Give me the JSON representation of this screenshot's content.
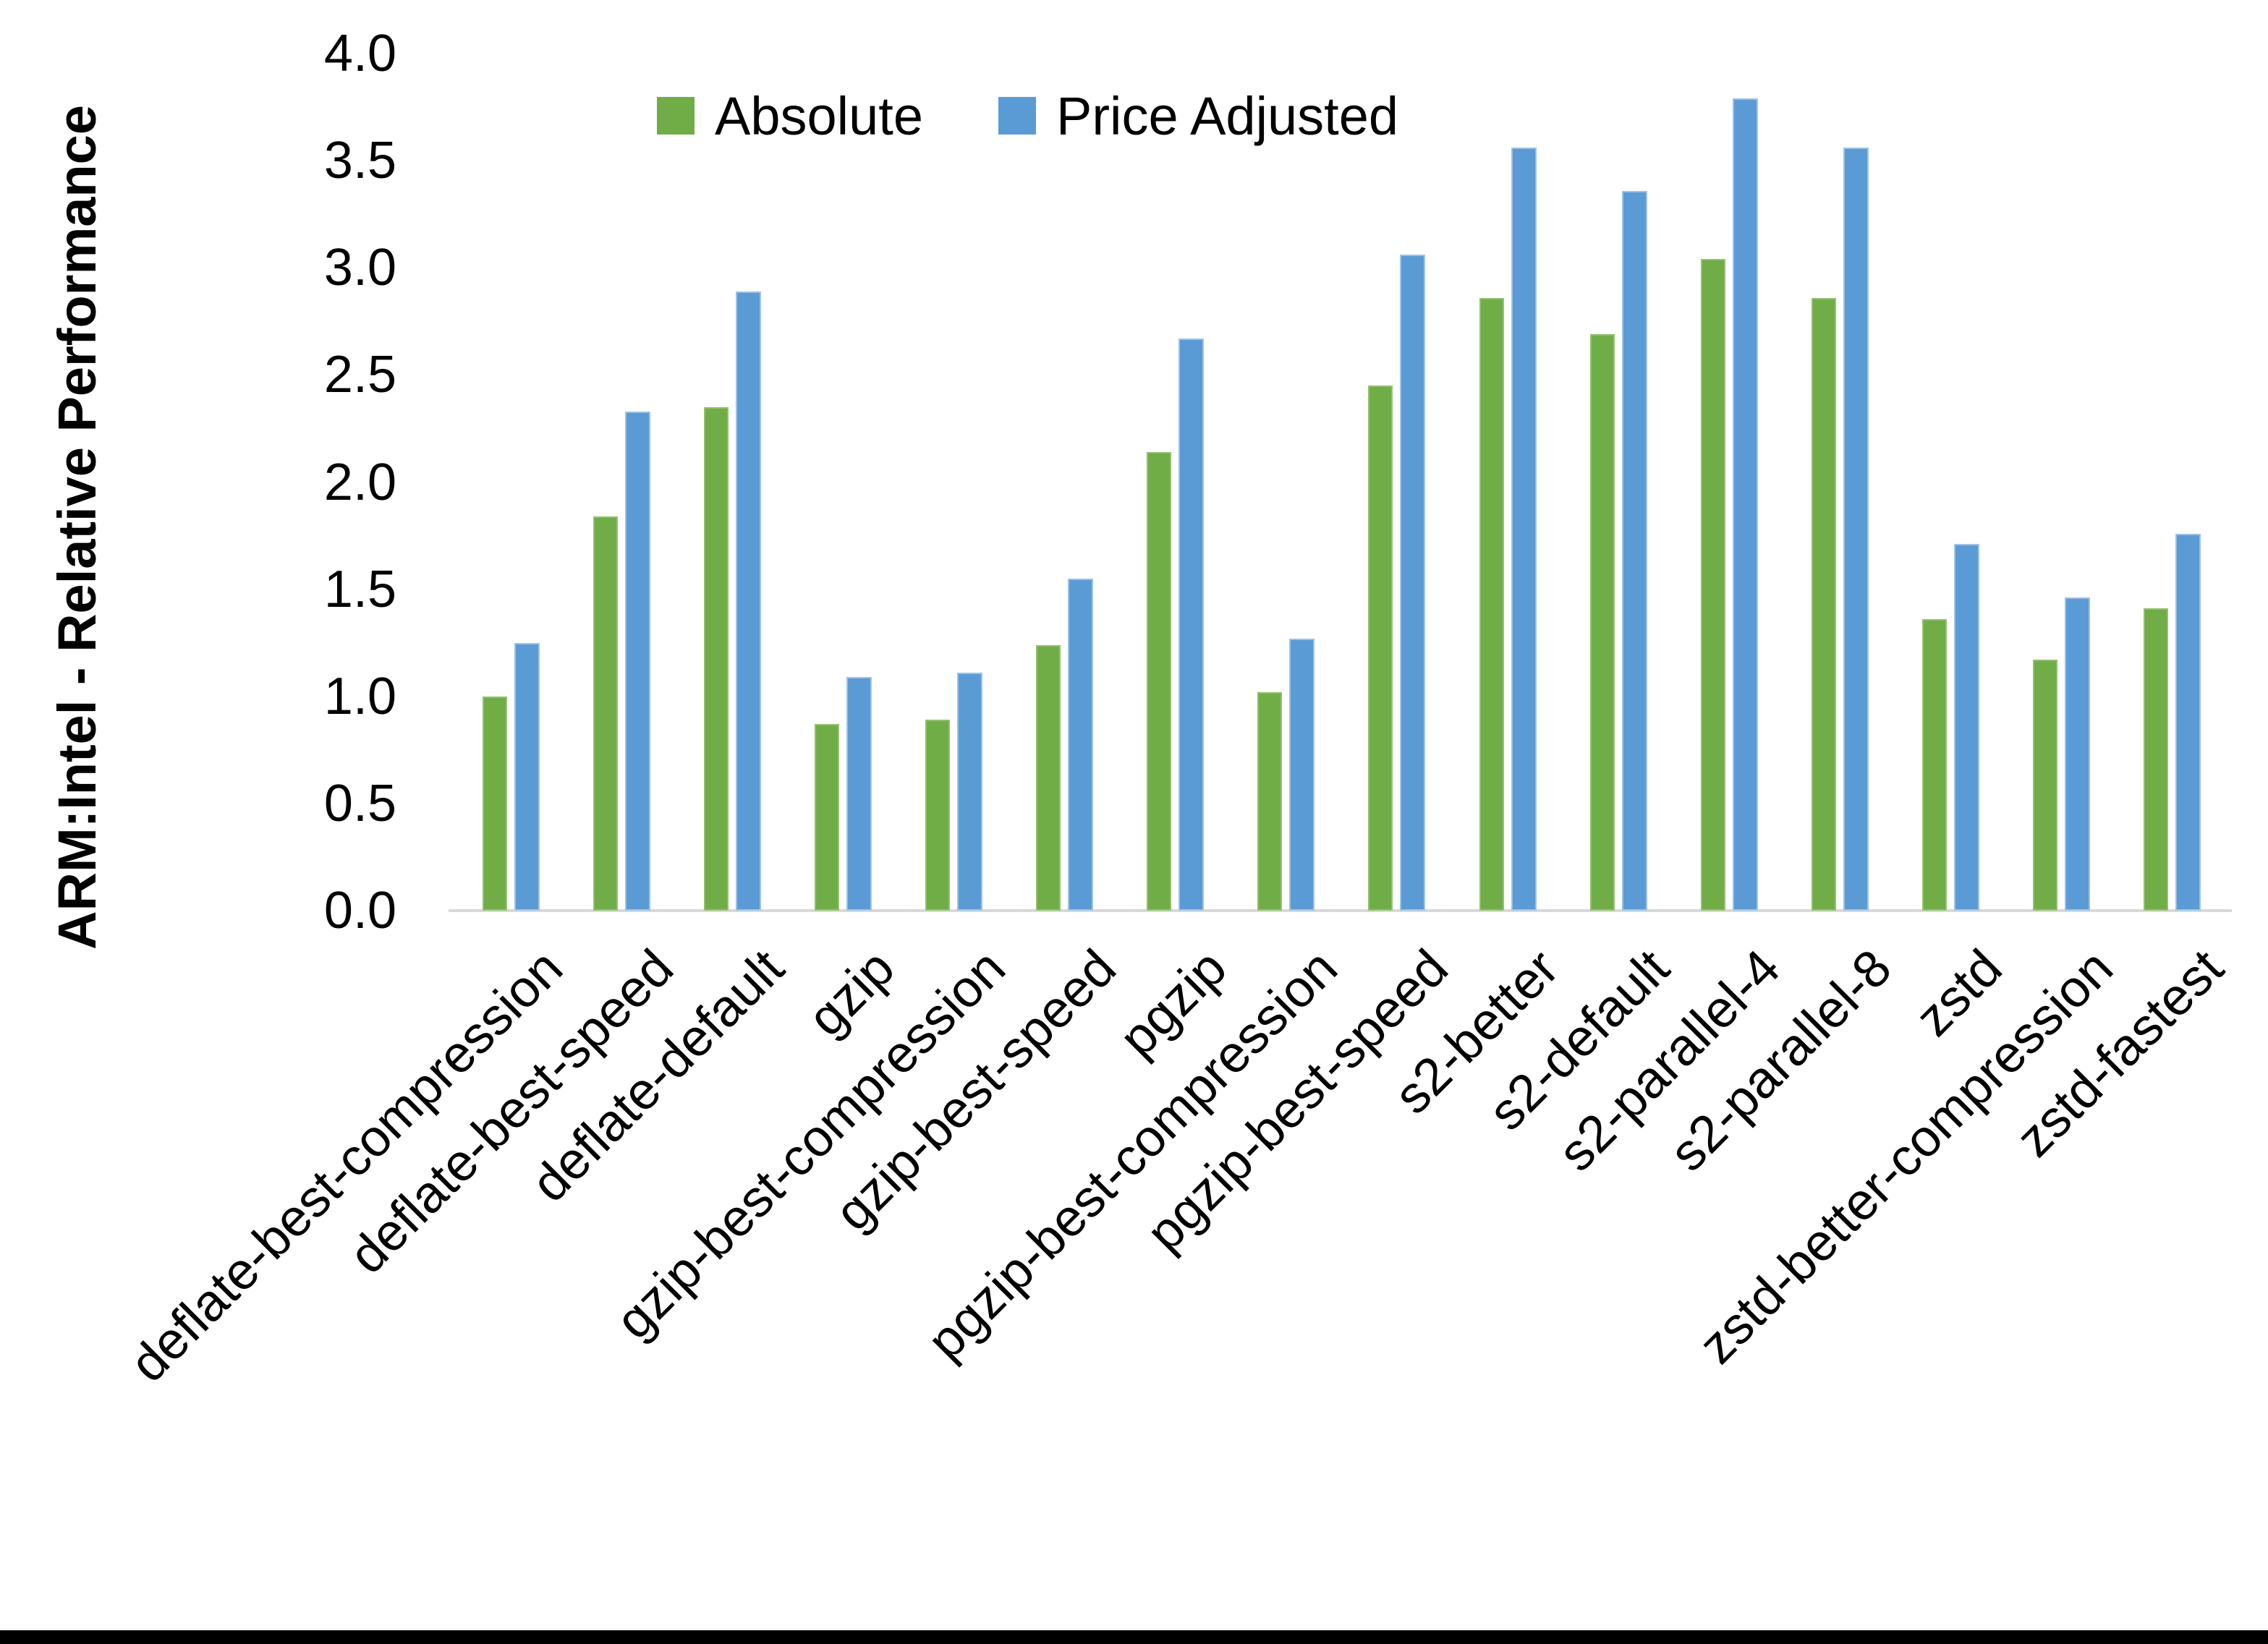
{
  "figure": {
    "background": "#ffffff",
    "axis_line_color": "#d9d9d9",
    "bottom_border_color": "#000000"
  },
  "legend": {
    "position": "top",
    "items": [
      {
        "label": "Absolute",
        "color": "#70ad47"
      },
      {
        "label": "Price Adjusted",
        "color": "#5b9bd5"
      }
    ]
  },
  "chart_data": {
    "type": "bar",
    "title": "",
    "xlabel": "",
    "ylabel": "ARM:Intel - Relative Performance",
    "ylim": [
      0.0,
      4.0
    ],
    "ytick_step": 0.5,
    "ytick_labels": [
      "0.0",
      "0.5",
      "1.0",
      "1.5",
      "2.0",
      "2.5",
      "3.0",
      "3.5",
      "4.0"
    ],
    "grid": false,
    "legend_position": "top-center",
    "categories": [
      "deflate-best-compression",
      "deflate-best-speed",
      "deflate-default",
      "gzip",
      "gzip-best-compression",
      "gzip-best-speed",
      "pgzip",
      "pgzip-best-compression",
      "pgzip-best-speed",
      "s2-better",
      "s2-default",
      "s2-parallel-4",
      "s2-parallel-8",
      "zstd",
      "zstd-better-compression",
      "zstd-fastest"
    ],
    "series": [
      {
        "name": "Absolute",
        "color": "#70ad47",
        "values": [
          1.0,
          1.84,
          2.35,
          0.87,
          0.89,
          1.24,
          2.14,
          1.02,
          2.45,
          2.86,
          2.69,
          3.04,
          2.86,
          1.36,
          1.17,
          1.41
        ]
      },
      {
        "name": "Price Adjusted",
        "color": "#5b9bd5",
        "values": [
          1.25,
          2.33,
          2.89,
          1.09,
          1.11,
          1.55,
          2.67,
          1.27,
          3.06,
          3.56,
          3.36,
          3.79,
          3.56,
          1.71,
          1.46,
          1.76
        ]
      }
    ]
  }
}
